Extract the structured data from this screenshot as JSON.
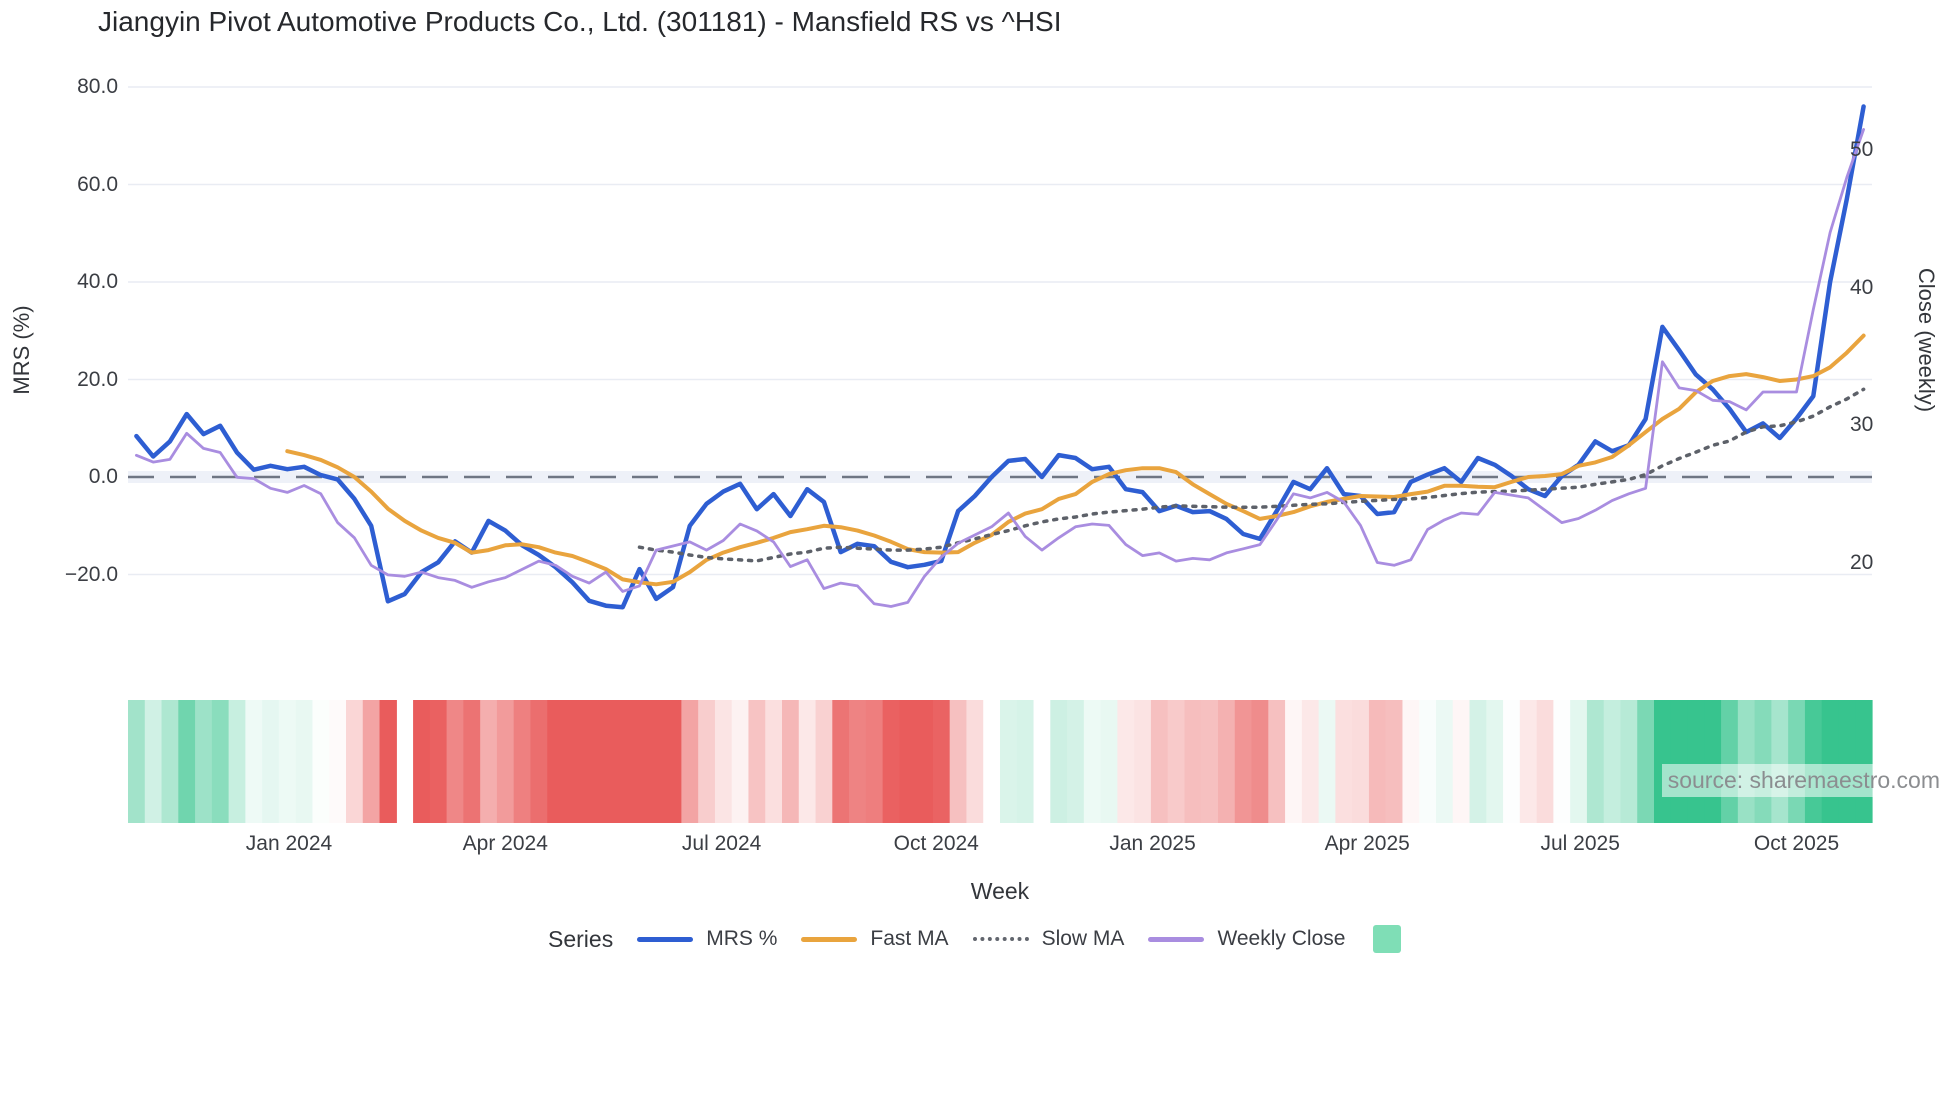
{
  "title": "Jiangyin Pivot Automotive Products Co., Ltd. (301181) - Mansfield RS vs ^HSI",
  "watermark": "source: sharemaestro.com",
  "axes": {
    "left": {
      "title": "MRS (%)",
      "ticks": [
        {
          "label": "80.0",
          "value": 80
        },
        {
          "label": "60.0",
          "value": 60
        },
        {
          "label": "40.0",
          "value": 40
        },
        {
          "label": "20.0",
          "value": 20
        },
        {
          "label": "0.0",
          "value": 0
        },
        {
          "label": "−20.0",
          "value": -20
        }
      ]
    },
    "right": {
      "title": "Close (weekly)",
      "ticks": [
        {
          "label": "50",
          "value": 50
        },
        {
          "label": "40",
          "value": 40
        },
        {
          "label": "30",
          "value": 30
        },
        {
          "label": "20",
          "value": 20
        }
      ]
    },
    "x": {
      "title": "Week",
      "ticks": [
        {
          "label": "Jan 2024",
          "week": 9.1
        },
        {
          "label": "Apr 2024",
          "week": 22.0
        },
        {
          "label": "Jul 2024",
          "week": 34.9
        },
        {
          "label": "Oct 2024",
          "week": 47.7
        },
        {
          "label": "Jan 2025",
          "week": 60.6
        },
        {
          "label": "Apr 2025",
          "week": 73.4
        },
        {
          "label": "Jul 2025",
          "week": 86.1
        },
        {
          "label": "Oct 2025",
          "week": 99.0
        }
      ]
    }
  },
  "legend": {
    "heading": "Series",
    "items": [
      {
        "label": "MRS %",
        "color": "#2e5ed2",
        "style": "solid"
      },
      {
        "label": "Fast MA",
        "color": "#e9a43e",
        "style": "solid"
      },
      {
        "label": "Slow MA",
        "color": "#62666e",
        "style": "dotted"
      },
      {
        "label": "Weekly Close",
        "color": "#a98de0",
        "style": "solid"
      }
    ],
    "heatmap_swatch_color": "#7fdeb6"
  },
  "chart_data": {
    "type": "line",
    "x_unit": "week",
    "weeks": 104,
    "grid_color": "#e9ecf3",
    "zero_line": {
      "value": 0,
      "color": "#6f7683",
      "band_color": "#eef1f8"
    },
    "left_axis_ticks": [
      80,
      60,
      40,
      20,
      0,
      -20
    ],
    "right_axis_ticks": [
      50,
      40,
      30,
      20
    ],
    "series": [
      {
        "name": "MRS %",
        "axis": "left",
        "color": "#2e5ed2",
        "style": "solid",
        "width": 4.5,
        "values": [
          8.4,
          4.2,
          7.3,
          12.9,
          8.8,
          10.5,
          5.0,
          1.5,
          2.3,
          1.6,
          2.1,
          0.4,
          -0.5,
          -4.5,
          -10.0,
          -25.5,
          -24.0,
          -19.5,
          -17.5,
          -13.2,
          -15.5,
          -9.0,
          -11.0,
          -14.0,
          -16.0,
          -18.5,
          -21.6,
          -25.4,
          -26.4,
          -26.7,
          -18.9,
          -25.0,
          -22.6,
          -10.0,
          -5.5,
          -3.0,
          -1.4,
          -6.6,
          -3.5,
          -8.0,
          -2.5,
          -5.1,
          -15.4,
          -13.7,
          -14.2,
          -17.4,
          -18.5,
          -18.0,
          -17.2,
          -7.0,
          -3.9,
          0.0,
          3.3,
          3.7,
          0.0,
          4.5,
          3.9,
          1.6,
          2.1,
          -2.5,
          -3.1,
          -7.0,
          -5.9,
          -7.2,
          -7.0,
          -8.6,
          -11.7,
          -12.7,
          -7.0,
          -1.0,
          -2.5,
          1.8,
          -3.5,
          -3.9,
          -7.6,
          -7.2,
          -1.0,
          0.5,
          1.8,
          -1.0,
          3.9,
          2.5,
          0.2,
          -2.5,
          -3.9,
          0.2,
          2.5,
          7.3,
          5.3,
          6.5,
          11.9,
          30.8,
          26.0,
          21.0,
          18.0,
          14.0,
          9.2,
          11.0,
          8.0,
          12.0,
          16.6,
          40.0,
          57.0,
          76.0
        ]
      },
      {
        "name": "Fast MA",
        "axis": "left",
        "color": "#e9a43e",
        "style": "solid",
        "width": 4,
        "values": [
          null,
          null,
          null,
          null,
          null,
          null,
          null,
          null,
          null,
          5.3,
          4.5,
          3.5,
          2.0,
          0.0,
          -3.0,
          -6.5,
          -9.0,
          -11.0,
          -12.5,
          -13.5,
          -15.5,
          -15.0,
          -14.0,
          -13.8,
          -14.4,
          -15.5,
          -16.2,
          -17.5,
          -18.9,
          -21.0,
          -21.6,
          -22.0,
          -21.5,
          -19.5,
          -17.0,
          -15.5,
          -14.4,
          -13.5,
          -12.5,
          -11.3,
          -10.7,
          -10.0,
          -10.3,
          -11.0,
          -12.0,
          -13.3,
          -14.8,
          -15.4,
          -15.5,
          -15.4,
          -13.5,
          -11.9,
          -9.2,
          -7.5,
          -6.6,
          -4.5,
          -3.5,
          -1.0,
          0.6,
          1.4,
          1.8,
          1.8,
          1.0,
          -1.5,
          -3.5,
          -5.5,
          -7.0,
          -8.6,
          -8.0,
          -7.2,
          -6.0,
          -5.1,
          -4.5,
          -3.9,
          -4.0,
          -4.1,
          -3.5,
          -3.0,
          -1.8,
          -1.8,
          -2.0,
          -2.1,
          -1.0,
          0.0,
          0.2,
          0.6,
          2.3,
          3.0,
          4.1,
          6.5,
          9.2,
          11.9,
          14.0,
          17.4,
          19.7,
          20.7,
          21.1,
          20.5,
          19.7,
          20.0,
          20.7,
          22.5,
          25.5,
          29.0
        ]
      },
      {
        "name": "Slow MA",
        "axis": "left",
        "color": "#5d6169",
        "style": "dotted",
        "width": 3.5,
        "values": [
          null,
          null,
          null,
          null,
          null,
          null,
          null,
          null,
          null,
          null,
          null,
          null,
          null,
          null,
          null,
          null,
          null,
          null,
          null,
          null,
          null,
          null,
          null,
          null,
          null,
          null,
          null,
          null,
          null,
          null,
          -14.4,
          -15.0,
          -15.4,
          -16.0,
          -16.5,
          -16.8,
          -17.0,
          -17.2,
          -16.5,
          -15.8,
          -15.4,
          -14.6,
          -14.4,
          -14.6,
          -14.8,
          -15.0,
          -15.0,
          -14.8,
          -14.4,
          -13.5,
          -12.7,
          -11.8,
          -11.0,
          -10.0,
          -9.2,
          -8.6,
          -8.2,
          -7.6,
          -7.2,
          -6.9,
          -6.6,
          -6.2,
          -5.9,
          -6.0,
          -6.1,
          -6.2,
          -6.2,
          -6.2,
          -6.0,
          -5.8,
          -5.6,
          -5.5,
          -5.2,
          -5.0,
          -4.8,
          -4.6,
          -4.5,
          -4.2,
          -3.8,
          -3.4,
          -3.1,
          -3.0,
          -2.9,
          -2.7,
          -2.5,
          -2.3,
          -2.1,
          -1.5,
          -1.0,
          -0.5,
          0.5,
          2.3,
          3.8,
          5.1,
          6.5,
          7.4,
          9.2,
          10.3,
          10.5,
          11.3,
          12.5,
          14.4,
          16.0,
          18.0
        ]
      },
      {
        "name": "Weekly Close",
        "axis": "right",
        "color": "#a98de0",
        "style": "solid",
        "width": 2.8,
        "values": [
          27.8,
          27.3,
          27.5,
          29.4,
          28.3,
          28.0,
          26.2,
          26.1,
          25.4,
          25.1,
          25.6,
          25.0,
          22.9,
          21.8,
          19.8,
          19.1,
          19.0,
          19.3,
          18.9,
          18.7,
          18.2,
          18.6,
          18.9,
          19.5,
          20.1,
          19.8,
          19.0,
          18.5,
          19.3,
          17.9,
          18.3,
          20.9,
          21.2,
          21.5,
          20.9,
          21.6,
          22.8,
          22.3,
          21.5,
          19.7,
          20.2,
          18.1,
          18.5,
          18.3,
          17.0,
          16.8,
          17.1,
          19.0,
          20.4,
          21.4,
          22.0,
          22.6,
          23.6,
          21.9,
          20.9,
          21.8,
          22.6,
          22.8,
          22.7,
          21.3,
          20.5,
          20.7,
          20.1,
          20.3,
          20.2,
          20.7,
          21.0,
          21.3,
          23.1,
          25.0,
          24.7,
          25.1,
          24.4,
          22.7,
          20.0,
          19.8,
          20.2,
          22.4,
          23.1,
          23.6,
          23.5,
          25.1,
          24.9,
          24.7,
          23.8,
          22.9,
          23.2,
          23.8,
          24.5,
          25.0,
          25.4,
          34.6,
          32.7,
          32.5,
          31.8,
          31.7,
          31.1,
          32.4,
          32.4,
          32.4,
          38.4,
          44.0,
          48.0,
          51.5
        ]
      }
    ],
    "heatmap": {
      "source_series": "MRS %",
      "gap_index": 16,
      "positive_color": "#37c48e",
      "negative_color": "#e95c5c",
      "color_scale_abs": 18
    }
  }
}
